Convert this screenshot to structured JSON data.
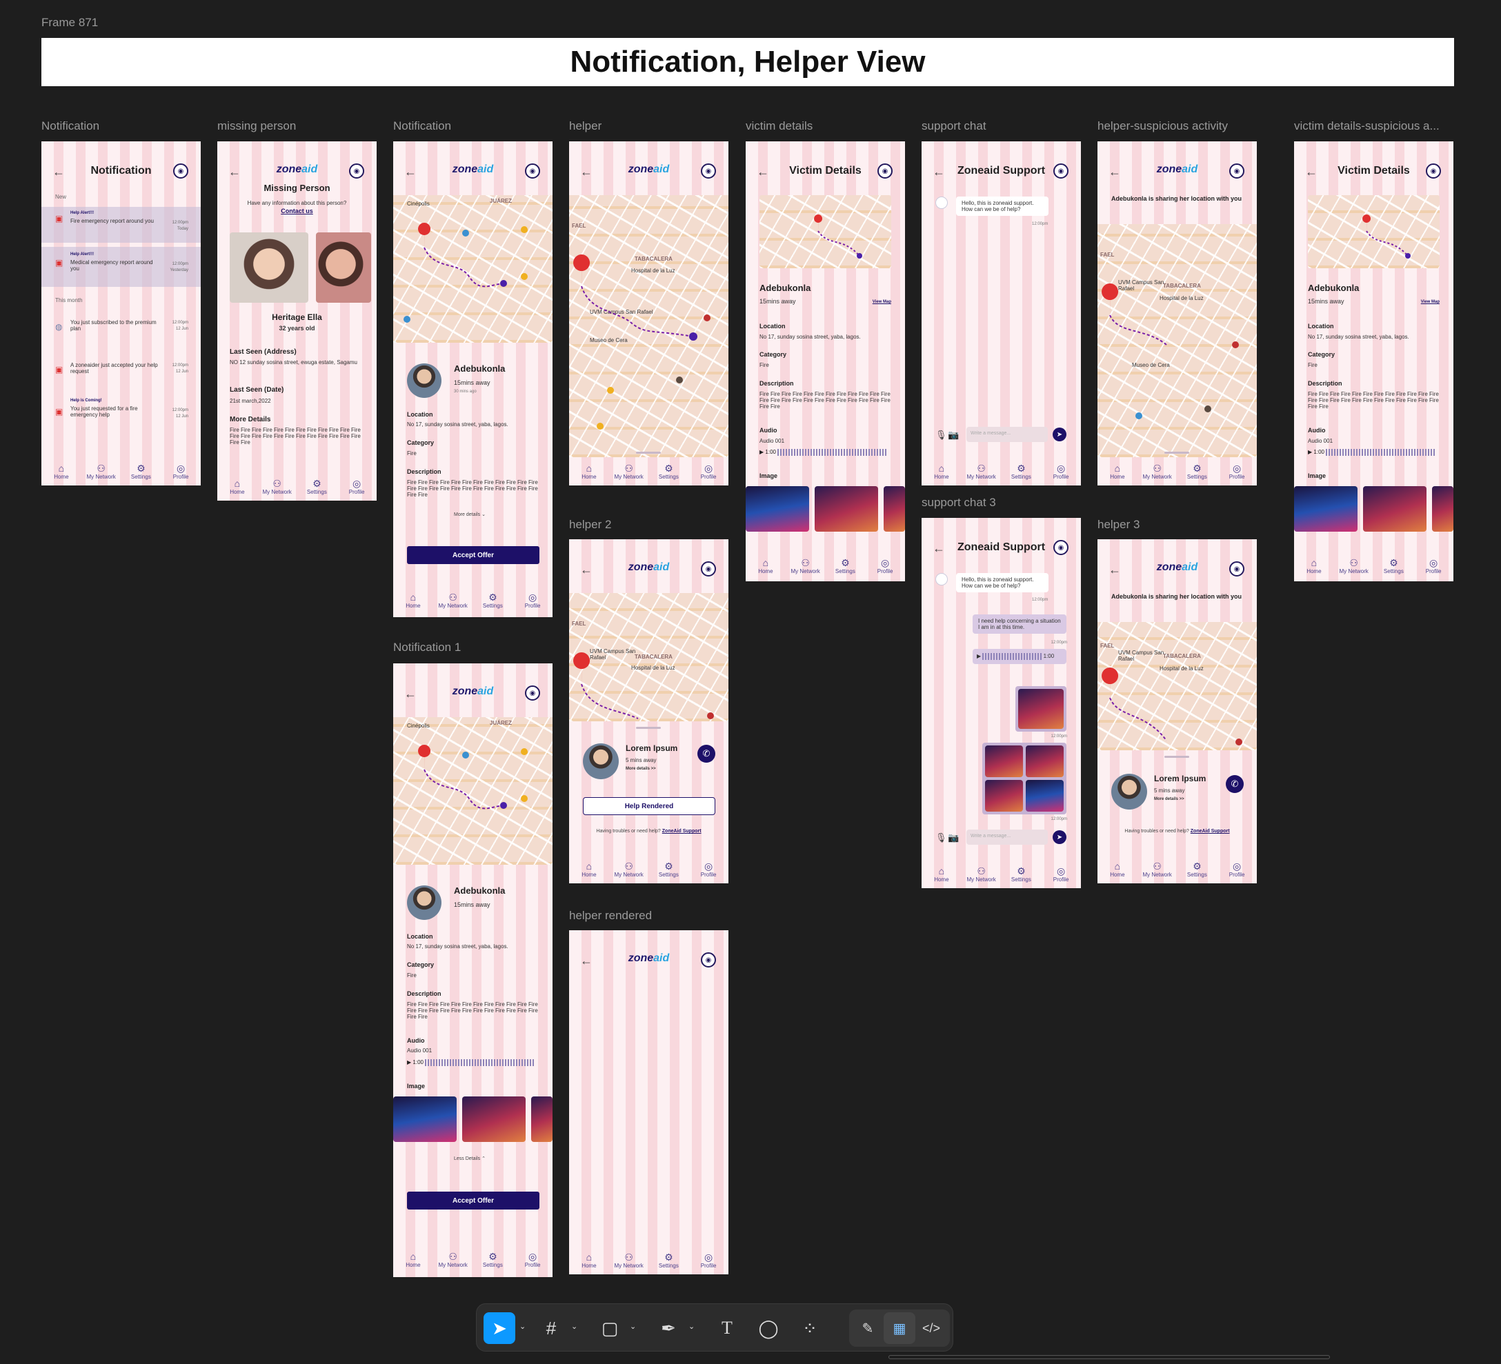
{
  "canvas": {
    "frame_label": "Frame 871",
    "title": "Notification, Helper View"
  },
  "frames": {
    "notification": "Notification",
    "missing_person": "missing person",
    "notification_map": "Notification",
    "helper": "helper",
    "victim_details": "victim details",
    "support_chat": "support chat",
    "helper_suspicious": "helper-suspicious activity",
    "victim_suspicious": "victim details-suspicious a...",
    "notification1": "Notification 1",
    "helper2": "helper 2",
    "support_chat3": "support chat 3",
    "helper3": "helper 3",
    "helper_rendered": "helper rendered"
  },
  "nav": {
    "home": "Home",
    "network": "My Network",
    "settings": "Settings",
    "profile": "Profile"
  },
  "logo": {
    "a": "zone",
    "b": "aid"
  },
  "notif": {
    "title": "Notification",
    "new": "New",
    "this_month": "This month",
    "items": [
      {
        "tag": "Help Alert!!!",
        "text": "Fire emergency report around you",
        "time": "12:00pm",
        "day": "Today"
      },
      {
        "tag": "Help Alert!!!",
        "text": "Medical emergency report around you",
        "time": "12:00pm",
        "day": "Yesterday"
      },
      {
        "tag": "",
        "text": "You just subscribed to the premium plan",
        "time": "12:00pm",
        "day": "12 Jun"
      },
      {
        "tag": "",
        "text": "A zoneaider just accepted your help request",
        "time": "12:00pm",
        "day": "12 Jun"
      },
      {
        "tag": "Help is Coming!",
        "text": "You just requested for a fire emergency help",
        "time": "12:00pm",
        "day": "12 Jun"
      }
    ]
  },
  "missing": {
    "title": "Missing Person",
    "question": "Have any information about this person?",
    "contact": "Contact us",
    "name": "Heritage Ella",
    "age": "32 years old",
    "addr_label": "Last Seen (Address)",
    "addr": "NO 12 sunday sosina street, ewuga estate, Sagamu",
    "date_label": "Last Seen (Date)",
    "date": "21st march,2022",
    "more_label": "More Details",
    "more": "Fire Fire Fire Fire Fire Fire Fire Fire Fire Fire Fire Fire Fire Fire Fire Fire Fire Fire Fire Fire Fire Fire Fire Fire Fire Fire"
  },
  "victim": {
    "name": "Adebukonla",
    "away": "15mins away",
    "ago": "30 mins ago",
    "loc_label": "Location",
    "loc": "No 17, sunday  sosina street, yaba, lagos.",
    "cat_label": "Category",
    "cat": "Fire",
    "desc_label": "Description",
    "desc": "Fire Fire Fire Fire Fire Fire Fire Fire Fire Fire Fire Fire Fire Fire Fire Fire Fire Fire Fire Fire Fire Fire Fire Fire Fire Fire",
    "more": "More details",
    "less": "Less Details",
    "accept": "Accept Offer",
    "audio_label": "Audio",
    "audio": "Audio 001",
    "audio_time": "1:00",
    "image_label": "Image",
    "title": "Victim Details",
    "view_map": "View Map"
  },
  "map_labels": {
    "a": "Independencia",
    "b": "Cinépolis",
    "c": "JUÁREZ",
    "d": "TABACALERA",
    "e": "Hospital de la Luz",
    "f": "UVM Campus San Rafael",
    "g": "Museo de Cera",
    "h": "FAEL",
    "i": "Metro Juárez"
  },
  "helper": {
    "name": "Lorem Ipsum",
    "away": "5 mins away",
    "more": "More details >>",
    "rendered": "Help Rendered",
    "trouble": "Having troubles or need help?",
    "support": "ZoneAid Support",
    "sharing": "Adebukonla is sharing her location with you"
  },
  "chat": {
    "title": "Zoneaid Support",
    "greet": "Hello, this is zoneaid support. How can we be of help?",
    "t1": "12:00pm",
    "msg": "I need help concerning a situation I am in at this time.",
    "t2": "12:00pm",
    "audio_time": "1:00",
    "t3": "12:00pm",
    "t4": "12:00pm",
    "placeholder": "Write a message..."
  },
  "toolbar": {
    "move": "move-tool",
    "frame": "frame-tool",
    "shape": "rectangle-tool",
    "pen": "pen-tool",
    "text": "T",
    "comment": "comment-tool",
    "actions": "actions-tool",
    "draw": "draw-mode",
    "design": "design-mode",
    "dev": "dev-mode"
  }
}
